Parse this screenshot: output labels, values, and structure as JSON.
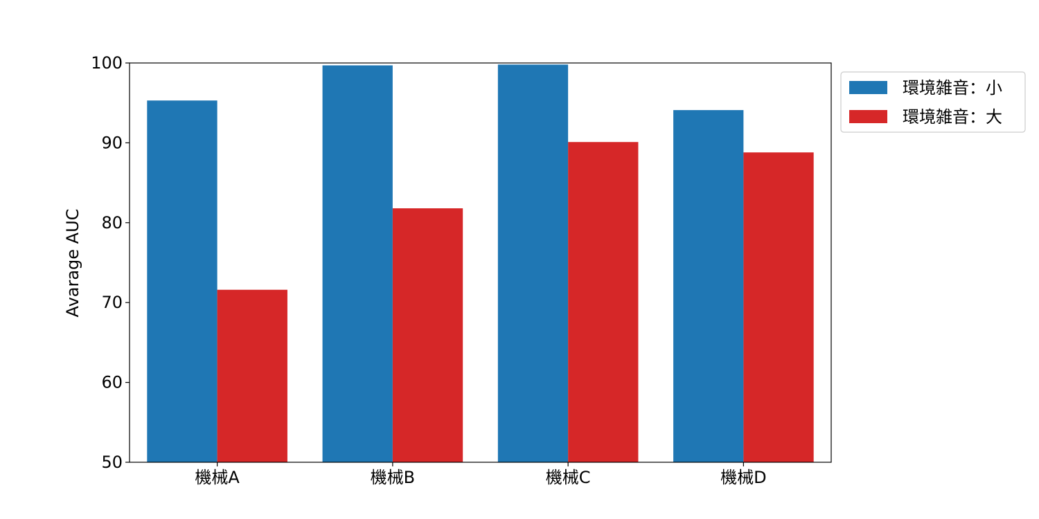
{
  "chart_data": {
    "type": "bar",
    "categories": [
      "機械A",
      "機械B",
      "機械C",
      "機械D"
    ],
    "series": [
      {
        "name": "環境雑音：小",
        "color": "#1f77b4",
        "values": [
          95.3,
          99.7,
          99.8,
          94.1
        ]
      },
      {
        "name": "環境雑音：大",
        "color": "#d62728",
        "values": [
          71.6,
          81.8,
          90.1,
          88.8
        ]
      }
    ],
    "xlabel": "",
    "ylabel": "Avarage AUC",
    "ylim": [
      50,
      100
    ],
    "yticks": [
      50,
      60,
      70,
      80,
      90,
      100
    ],
    "grid": false,
    "legend_placement": "outside-top-right"
  }
}
